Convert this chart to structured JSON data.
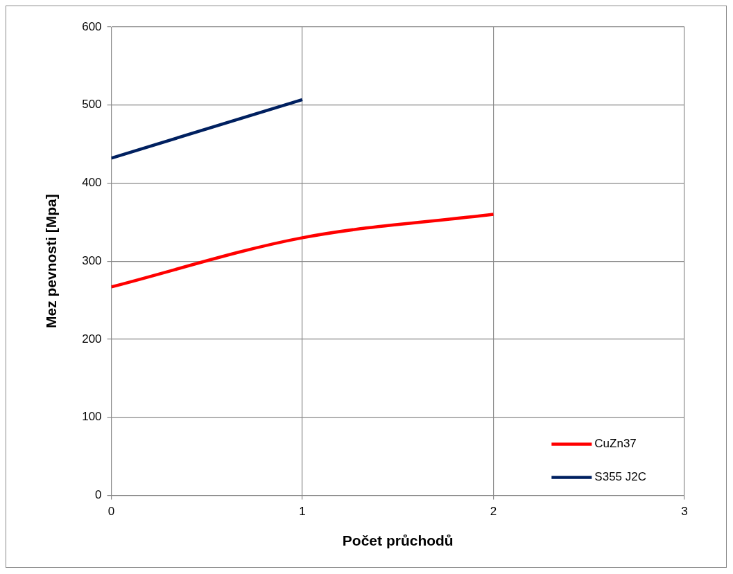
{
  "chart_data": {
    "type": "line",
    "xlabel": "Počet průchodů",
    "ylabel": "Mez pevnosti [Mpa]",
    "x": [
      0,
      1,
      2
    ],
    "xlim": [
      0,
      3
    ],
    "xticks": [
      0,
      1,
      2,
      3
    ],
    "ylim": [
      0,
      600
    ],
    "yticks": [
      0,
      100,
      200,
      300,
      400,
      500,
      600
    ],
    "grid": true,
    "legend": "bottom right",
    "marker": "none",
    "line_style": "solid",
    "series": [
      {
        "name": "CuZn37",
        "color": "#ff0000",
        "values": [
          267,
          330,
          360
        ]
      },
      {
        "name": "S355 J2C",
        "color": "#002060",
        "x": [
          0,
          1
        ],
        "values": [
          432,
          507
        ]
      }
    ]
  }
}
